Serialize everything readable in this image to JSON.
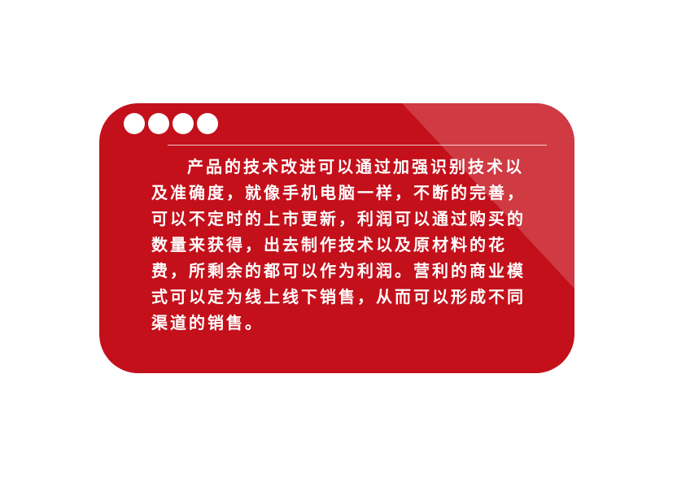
{
  "colors": {
    "card": "#c3101b",
    "gloss": "#cf3a43",
    "text": "#ffffff",
    "background": "#ffffff"
  },
  "dots": {
    "count": 4,
    "icon": "circle-dot-icon"
  },
  "content": {
    "paragraph": "产品的技术改进可以通过加强识别技术以及准确度，就像手机电脑一样，不断的完善，可以不定时的上市更新，利润可以通过购买的数量来获得，出去制作技术以及原材料的花费，所剩余的都可以作为利润。营利的商业模式可以定为线上线下销售，从而可以形成不同渠道的销售。"
  }
}
